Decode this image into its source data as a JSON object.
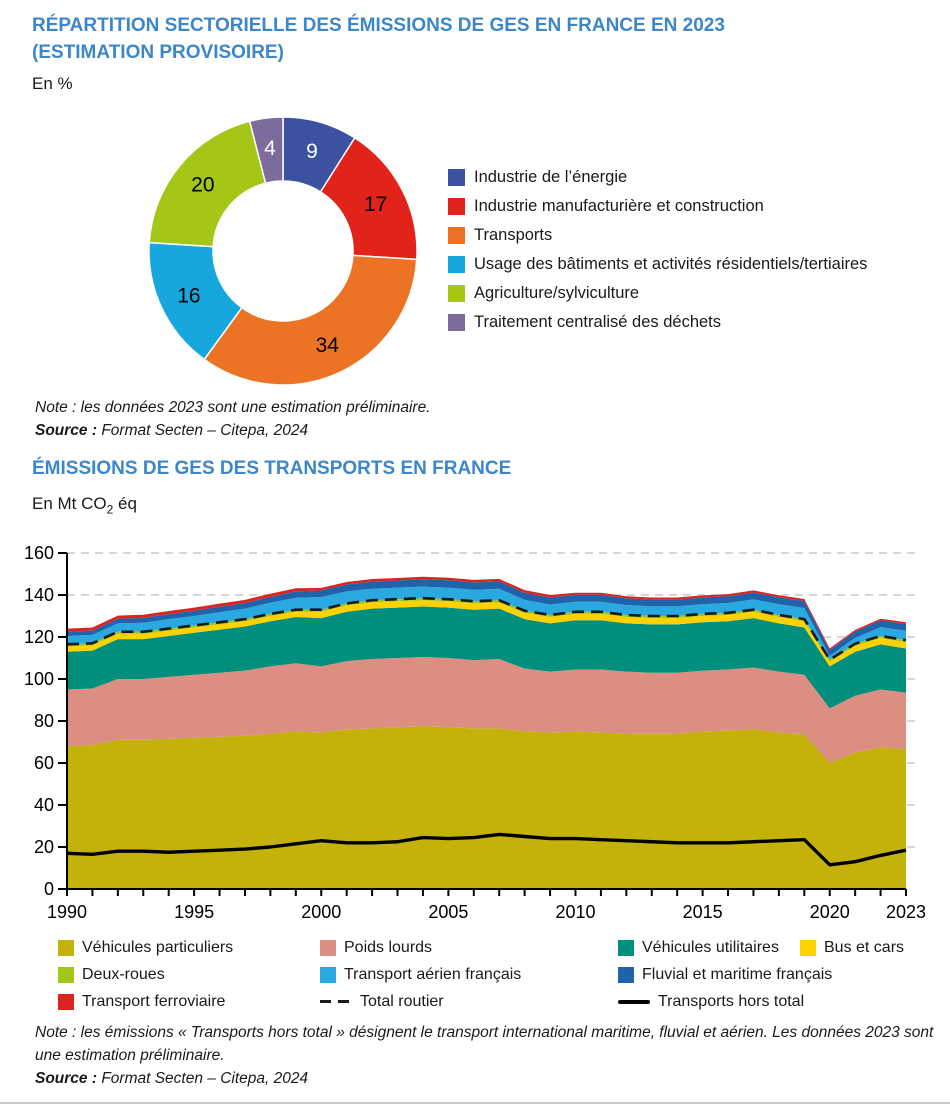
{
  "page": {
    "accent_color": "#3C87C9",
    "chart1": {
      "title_line1": "RÉPARTITION SECTORIELLE DES ÉMISSIONS DE GES EN FRANCE EN 2023",
      "title_line2": "(ESTIMATION PROVISOIRE)",
      "unit": "En %",
      "note_label": "Note :",
      "note_text": " les données 2023 sont une estimation préliminaire.",
      "source_label": "Source :",
      "source_text": " Format Secten – Citepa, 2024"
    },
    "chart2": {
      "title": "ÉMISSIONS DE GES DES TRANSPORTS EN FRANCE",
      "unit_prefix": "En Mt CO",
      "unit_sub": "2",
      "unit_suffix": " éq",
      "note_label": "Note :",
      "note_text": " les émissions « Transports hors total » désignent le transport international maritime, fluvial et aérien. Les données 2023 sont une estimation préliminaire.",
      "source_label": "Source :",
      "source_text": " Format Secten – Citepa, 2024"
    }
  },
  "chart_data": [
    {
      "type": "pie",
      "variant": "donut",
      "title": "Répartition sectorielle des émissions de GES en France en 2023 (estimation provisoire)",
      "unit": "%",
      "start_angle_deg": 0,
      "direction": "clockwise",
      "legend_position": "right",
      "segments": [
        {
          "label": "Industrie de l’énergie",
          "value": 9,
          "color": "#3C52A0",
          "value_label_color": "#ffffff"
        },
        {
          "label": "Industrie manufacturière et construction",
          "value": 17,
          "color": "#E2231A",
          "value_label_color": "#000000"
        },
        {
          "label": "Transports",
          "value": 34,
          "color": "#EB7323",
          "value_label_color": "#000000"
        },
        {
          "label": "Usage des bâtiments et activités résidentiels/tertiaires",
          "value": 16,
          "color": "#16A7DF",
          "value_label_color": "#000000"
        },
        {
          "label": "Agriculture/sylviculture",
          "value": 20,
          "color": "#A4C617",
          "value_label_color": "#000000"
        },
        {
          "label": "Traitement centralisé des déchets",
          "value": 4,
          "color": "#7D6B9C",
          "value_label_color": "#ffffff"
        }
      ]
    },
    {
      "type": "area",
      "stacked": true,
      "title": "Émissions de GES des transports en France",
      "ylabel": "En Mt CO2 éq",
      "xlabel": "",
      "ylim": [
        0,
        160
      ],
      "y_ticks": [
        0,
        20,
        40,
        60,
        80,
        100,
        120,
        140,
        160
      ],
      "grid": "horizontal-dashed",
      "grid_color": "#c9c9c9",
      "x": [
        1990,
        1991,
        1992,
        1993,
        1994,
        1995,
        1996,
        1997,
        1998,
        1999,
        2000,
        2001,
        2002,
        2003,
        2004,
        2005,
        2006,
        2007,
        2008,
        2009,
        2010,
        2011,
        2012,
        2013,
        2014,
        2015,
        2016,
        2017,
        2018,
        2019,
        2020,
        2021,
        2022,
        2023
      ],
      "x_tick_labels": [
        1990,
        1995,
        2000,
        2005,
        2010,
        2015,
        2020,
        2023
      ],
      "values_note": "Mt CO2 éq, estimations lues sur le graphique",
      "series": [
        {
          "name": "Véhicules particuliers",
          "color": "#C4B10A",
          "road": true,
          "values": [
            68,
            68.5,
            71,
            71,
            71.5,
            72,
            72.5,
            73,
            74,
            75,
            74.5,
            76,
            76.5,
            77,
            77.5,
            77,
            76.5,
            76.5,
            75,
            74.5,
            75,
            74.5,
            74,
            74,
            74,
            75,
            75.5,
            76,
            74.5,
            73.5,
            60,
            65,
            67.5,
            66.5
          ]
        },
        {
          "name": "Poids lourds",
          "color": "#DD8E83",
          "road": true,
          "values": [
            27,
            27,
            29,
            29,
            29.5,
            30,
            30.5,
            31,
            32,
            32.5,
            31.5,
            32.5,
            33,
            33,
            33,
            33,
            32.5,
            33,
            30,
            29,
            29.5,
            30,
            29.5,
            29,
            29,
            29,
            29,
            29.5,
            29,
            28.5,
            26,
            27,
            27.5,
            27
          ]
        },
        {
          "name": "Véhicules utilitaires",
          "color": "#008F7C",
          "road": true,
          "values": [
            18,
            18,
            19,
            19,
            19.5,
            20,
            20.5,
            21,
            21.5,
            22,
            23,
            23.5,
            24,
            24,
            24,
            24,
            24,
            24,
            23.5,
            23,
            23.5,
            23.5,
            23,
            23,
            23,
            23,
            23,
            23.5,
            23,
            22.5,
            20,
            21,
            21.5,
            21
          ]
        },
        {
          "name": "Bus et cars",
          "color": "#FFD100",
          "road": true,
          "values": [
            2.5,
            2.5,
            2.5,
            2.5,
            2.5,
            2.5,
            2.5,
            2.5,
            2.5,
            2.5,
            3,
            3,
            3,
            3,
            3,
            3,
            3,
            3,
            3,
            3,
            3,
            3,
            3,
            3,
            3,
            3,
            3,
            3,
            3,
            3,
            2.2,
            2.8,
            3,
            3
          ]
        },
        {
          "name": "Deux-roues",
          "color": "#A2C617",
          "road": true,
          "values": [
            1,
            1,
            1,
            1,
            1,
            1,
            1,
            1,
            1,
            1,
            1,
            1,
            1,
            1,
            1,
            1,
            1,
            1,
            1,
            1,
            1,
            1,
            1,
            1,
            1,
            1,
            1,
            1,
            1,
            1,
            1,
            1,
            1,
            1
          ]
        },
        {
          "name": "Transport aérien français",
          "color": "#29A9DF",
          "road": false,
          "values": [
            4,
            4,
            4,
            4.3,
            4.5,
            4.5,
            4.8,
            5,
            5.3,
            5.7,
            6,
            5.7,
            5.5,
            5.5,
            5.5,
            5.5,
            5.5,
            5.5,
            5.2,
            5,
            4.8,
            4.8,
            4.7,
            4.6,
            4.6,
            4.6,
            4.7,
            4.9,
            5.1,
            5.3,
            1.8,
            2.8,
            4.2,
            4.5
          ]
        },
        {
          "name": "Fluvial et maritime français",
          "color": "#1F63AA",
          "road": false,
          "values": [
            2,
            2,
            2.2,
            2.3,
            2.4,
            2.5,
            2.6,
            2.7,
            2.8,
            3,
            3.2,
            3.3,
            3.4,
            3.4,
            3.5,
            3.5,
            3.5,
            3.5,
            3.4,
            3.3,
            3.3,
            3.3,
            3.2,
            3.2,
            3.2,
            3.2,
            3.2,
            3.3,
            3.3,
            3.3,
            2.8,
            3,
            3.2,
            3.2
          ]
        },
        {
          "name": "Transport ferroviaire",
          "color": "#DC241F",
          "road": false,
          "values": [
            1.5,
            1.5,
            1.5,
            1.5,
            1.5,
            1.5,
            1.5,
            1.5,
            1.5,
            1.5,
            1.2,
            1.2,
            1.2,
            1.2,
            1.2,
            1.2,
            1.2,
            1.2,
            1.2,
            1.2,
            1,
            1,
            1,
            1,
            1,
            1,
            1,
            1,
            1,
            1,
            0.8,
            0.8,
            0.8,
            0.8
          ]
        }
      ],
      "lines": [
        {
          "name": "Total routier",
          "style": "dashed",
          "color": "#1a1a1a",
          "derived": "sum_of_road_series"
        },
        {
          "name": "Transports hors total",
          "style": "solid",
          "color": "#000000",
          "values": [
            17,
            16.5,
            18,
            18,
            17.5,
            18,
            18.5,
            19,
            20,
            21.5,
            23,
            22,
            22,
            22.5,
            24.5,
            24,
            24.5,
            26,
            25,
            24,
            24,
            23.5,
            23,
            22.5,
            22,
            22,
            22,
            22.5,
            23,
            23.5,
            11.5,
            13,
            16,
            18.5
          ]
        }
      ]
    }
  ]
}
